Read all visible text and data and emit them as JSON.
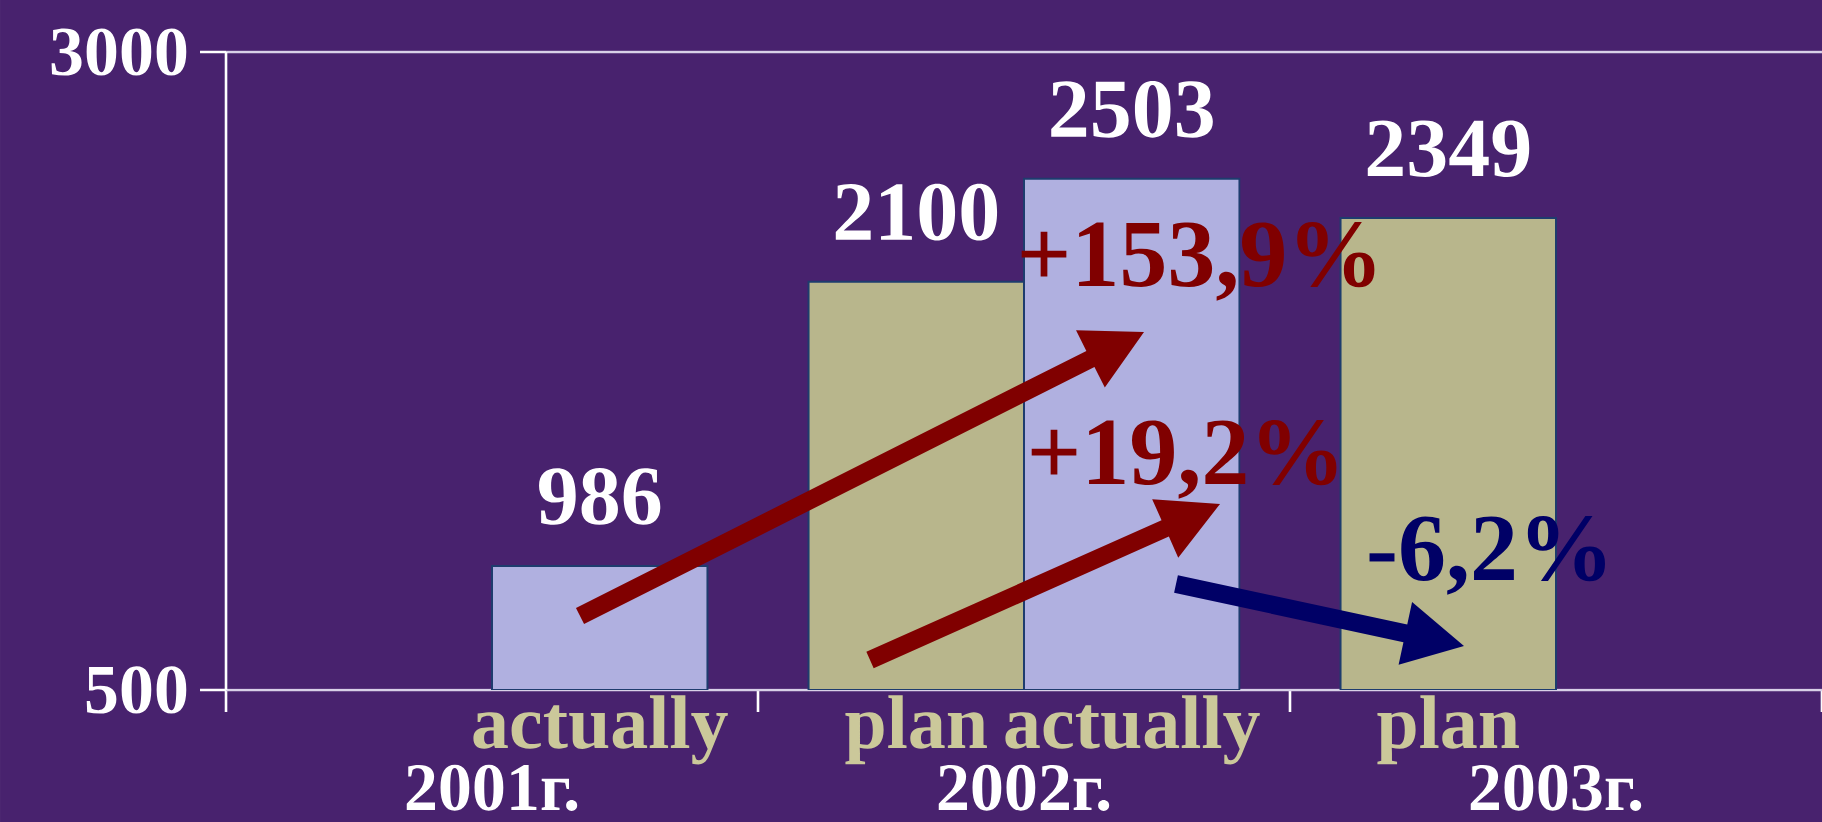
{
  "chart_data": {
    "type": "bar",
    "categories": [
      "2001г.",
      "2002г.",
      "2003г."
    ],
    "series": [
      {
        "name": "plan",
        "color": "#b8b68c",
        "values": [
          null,
          2100,
          2349
        ]
      },
      {
        "name": "actually",
        "color": "#b0b0e0",
        "values": [
          986,
          2503,
          null
        ]
      }
    ],
    "ylim": [
      500,
      3000
    ],
    "yticks": [
      500,
      3000
    ],
    "data_labels": true,
    "annotations": [
      "+153,9%",
      "+19,2%",
      "-6,2%"
    ]
  }
}
